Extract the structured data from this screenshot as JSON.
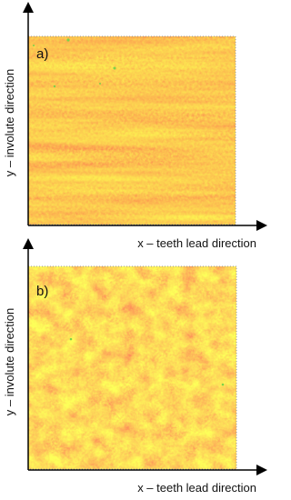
{
  "panels": [
    {
      "label": "a)",
      "y_axis": "y – involute direction",
      "x_axis": "x – teeth lead direction"
    },
    {
      "label": "b)",
      "y_axis": "y – involute direction",
      "x_axis": "x – teeth lead direction"
    }
  ]
}
